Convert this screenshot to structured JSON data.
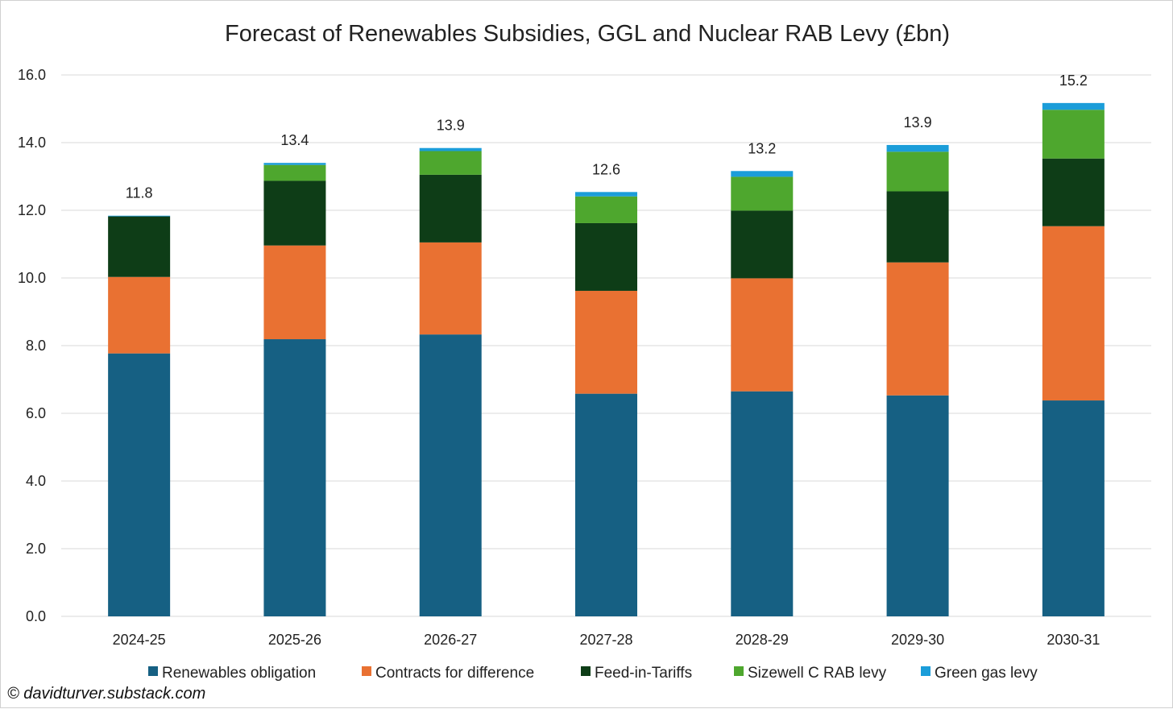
{
  "chart_data": {
    "type": "bar",
    "stacked": true,
    "title": "Forecast of Renewables Subsidies, GGL and Nuclear RAB Levy (£bn)",
    "xlabel": "",
    "ylabel": "",
    "ylim": [
      0,
      16
    ],
    "yticks": [
      "0.0",
      "2.0",
      "4.0",
      "6.0",
      "8.0",
      "10.0",
      "12.0",
      "14.0",
      "16.0"
    ],
    "grid": true,
    "legend_position": "bottom",
    "categories": [
      "2024-25",
      "2025-26",
      "2026-27",
      "2027-28",
      "2028-29",
      "2029-30",
      "2030-31"
    ],
    "series": [
      {
        "name": "Renewables obligation",
        "color": "#166083",
        "values": [
          7.77,
          8.19,
          8.33,
          6.58,
          6.65,
          6.53,
          6.38
        ]
      },
      {
        "name": "Contracts for difference",
        "color": "#e97132",
        "values": [
          2.26,
          2.77,
          2.72,
          3.04,
          3.34,
          3.93,
          5.15
        ]
      },
      {
        "name": "Feed-in-Tariffs",
        "color": "#0e3d17",
        "values": [
          1.79,
          1.91,
          2.0,
          2.0,
          2.0,
          2.1,
          2.0
        ]
      },
      {
        "name": "Sizewell C RAB levy",
        "color": "#4ea72e",
        "values": [
          0.0,
          0.47,
          0.7,
          0.79,
          1.0,
          1.17,
          1.44
        ]
      },
      {
        "name": "Green gas levy",
        "color": "#1b9dd9",
        "values": [
          0.02,
          0.06,
          0.09,
          0.13,
          0.17,
          0.2,
          0.2
        ]
      }
    ],
    "totals": [
      "11.8",
      "13.4",
      "13.9",
      "12.6",
      "13.2",
      "13.9",
      "15.2"
    ]
  },
  "credit": "© davidturver.substack.com"
}
